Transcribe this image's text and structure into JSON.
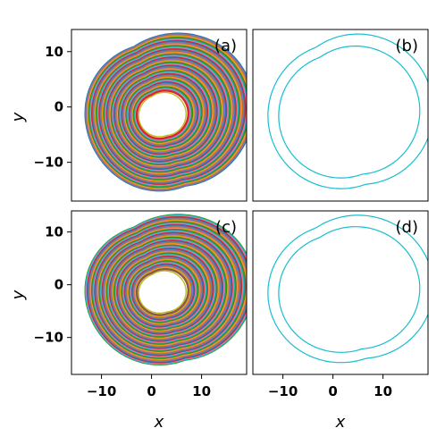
{
  "chart_data": [
    {
      "type": "line",
      "panel_label": "(a)",
      "description_kind": "attractor",
      "ylabel": "y",
      "xlabel": "",
      "xlim": [
        -16,
        19
      ],
      "ylim": [
        -17,
        14
      ],
      "yticks": [
        -10,
        0,
        10
      ],
      "xticks": [],
      "colors": [
        "#1f77b4",
        "#ff7f0e",
        "#2ca02c",
        "#d62728",
        "#9467bd",
        "#8c564b",
        "#e377c2",
        "#7f7f7f",
        "#bcbd22",
        "#17becf"
      ],
      "grid": false
    },
    {
      "type": "line",
      "panel_label": "(b)",
      "description_kind": "limit-cycle",
      "ylabel": "",
      "xlabel": "",
      "xlim": [
        -16,
        19
      ],
      "ylim": [
        -17,
        14
      ],
      "yticks": [],
      "xticks": [],
      "colors": [
        "#17becf"
      ],
      "grid": false
    },
    {
      "type": "line",
      "panel_label": "(c)",
      "description_kind": "attractor",
      "ylabel": "y",
      "xlabel": "x",
      "xlim": [
        -16,
        19
      ],
      "ylim": [
        -17,
        14
      ],
      "yticks": [
        -10,
        0,
        10
      ],
      "xticks": [
        -10,
        0,
        10
      ],
      "colors": [
        "#1f77b4",
        "#ff7f0e",
        "#2ca02c",
        "#d62728",
        "#9467bd",
        "#8c564b",
        "#e377c2",
        "#7f7f7f",
        "#bcbd22",
        "#17becf"
      ],
      "grid": false
    },
    {
      "type": "line",
      "panel_label": "(d)",
      "description_kind": "limit-cycle",
      "ylabel": "",
      "xlabel": "x",
      "xlim": [
        -16,
        19
      ],
      "ylim": [
        -17,
        14
      ],
      "yticks": [],
      "xticks": [
        -10,
        0,
        10
      ],
      "colors": [
        "#17becf"
      ],
      "grid": false
    }
  ]
}
